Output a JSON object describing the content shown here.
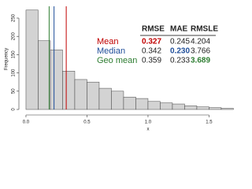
{
  "chart_data": {
    "type": "histogram",
    "x_label": "x",
    "y_label": "Frequency",
    "bins": [
      0,
      0.1,
      0.2,
      0.3,
      0.4,
      0.5,
      0.6,
      0.7,
      0.8,
      0.9,
      1.0,
      1.1,
      1.2,
      1.3,
      1.4,
      1.5,
      1.6,
      1.7
    ],
    "counts": [
      272,
      188,
      163,
      105,
      82,
      75,
      58,
      50,
      34,
      30,
      22,
      18,
      15,
      10,
      7,
      5,
      3
    ],
    "bar_color": "#d3d3d3",
    "xlim": [
      -0.032,
      1.71
    ],
    "ylim": [
      0,
      278
    ],
    "xticks": [
      {
        "value": 0,
        "label": "0.0"
      },
      0.5,
      {
        "value": 1,
        "label": "1.0"
      },
      1.5
    ],
    "yticks": [
      0,
      50,
      100,
      150,
      200,
      250
    ],
    "table_columns": [
      "RMSE",
      "MAE",
      "RMSLE"
    ],
    "stats": [
      {
        "name": "Mean",
        "color": "#c00000",
        "line_x": 0.33,
        "values": [
          0.327,
          0.245,
          4.204
        ],
        "bold": 0
      },
      {
        "name": "Median",
        "color": "#1f4e9a",
        "line_x": 0.23,
        "values": [
          0.342,
          0.23,
          3.766
        ],
        "bold": 1,
        "value_labels": [
          "0.342",
          "0.230",
          "3.766"
        ]
      },
      {
        "name": "Geo mean",
        "color": "#2e7d32",
        "line_x": 0.19,
        "values": [
          0.359,
          0.233,
          3.689
        ],
        "bold": 2
      }
    ]
  }
}
